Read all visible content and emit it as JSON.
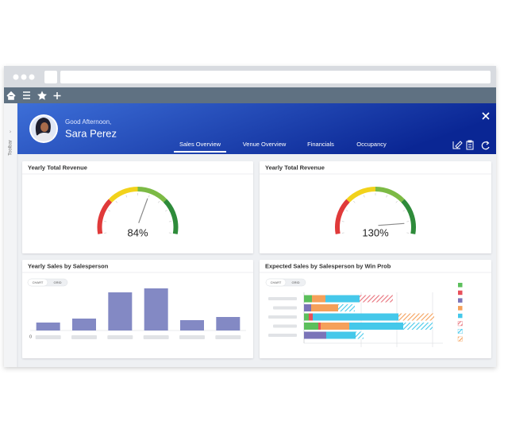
{
  "sidebar": {
    "label": "Toolbar"
  },
  "header": {
    "greeting": "Good Afternoon,",
    "name": "Sara Perez",
    "tabs": [
      "Sales Overview",
      "Venue Overview",
      "Financials",
      "Occupancy"
    ],
    "active_tab": 0
  },
  "gauges": [
    {
      "title": "Yearly Total Revenue",
      "value": 84,
      "value_label": "84%",
      "range": [
        0,
        140
      ]
    },
    {
      "title": "Yearly Total Revenue",
      "value": 130,
      "value_label": "130%",
      "range": [
        0,
        140
      ]
    }
  ],
  "chart_data": [
    {
      "type": "bar",
      "title": "Yearly Sales by Salesperson",
      "toggle": [
        "CHART",
        "GRID"
      ],
      "values": [
        10,
        15,
        48,
        53,
        13,
        17
      ],
      "color": "#8389c4",
      "ylim": [
        0,
        60
      ],
      "yticks": [
        0
      ]
    },
    {
      "type": "stacked_barh",
      "title": "Expected Sales by Salesperson by Win Prob",
      "toggle": [
        "CHART",
        "GRID"
      ],
      "xlim": [
        0,
        180
      ],
      "series": [
        {
          "color": "#5cbf5c",
          "hatched": false,
          "values": [
            10,
            0,
            6,
            18,
            0
          ]
        },
        {
          "color": "#e8505b",
          "hatched": false,
          "values": [
            0,
            0,
            5,
            3,
            0
          ]
        },
        {
          "color": "#7b74b8",
          "hatched": false,
          "values": [
            0,
            9,
            0,
            0,
            28
          ]
        },
        {
          "color": "#f5a05a",
          "hatched": false,
          "values": [
            17,
            34,
            0,
            36,
            0
          ]
        },
        {
          "color": "#45c8ea",
          "hatched": false,
          "values": [
            43,
            0,
            108,
            68,
            37
          ]
        },
        {
          "color": "#e8707a",
          "hatched": true,
          "values": [
            42,
            0,
            0,
            0,
            0
          ]
        },
        {
          "color": "#45c8ea",
          "hatched": true,
          "values": [
            0,
            21,
            0,
            37,
            10
          ]
        },
        {
          "color": "#f5a05a",
          "hatched": true,
          "values": [
            0,
            0,
            45,
            0,
            0
          ]
        }
      ]
    }
  ]
}
